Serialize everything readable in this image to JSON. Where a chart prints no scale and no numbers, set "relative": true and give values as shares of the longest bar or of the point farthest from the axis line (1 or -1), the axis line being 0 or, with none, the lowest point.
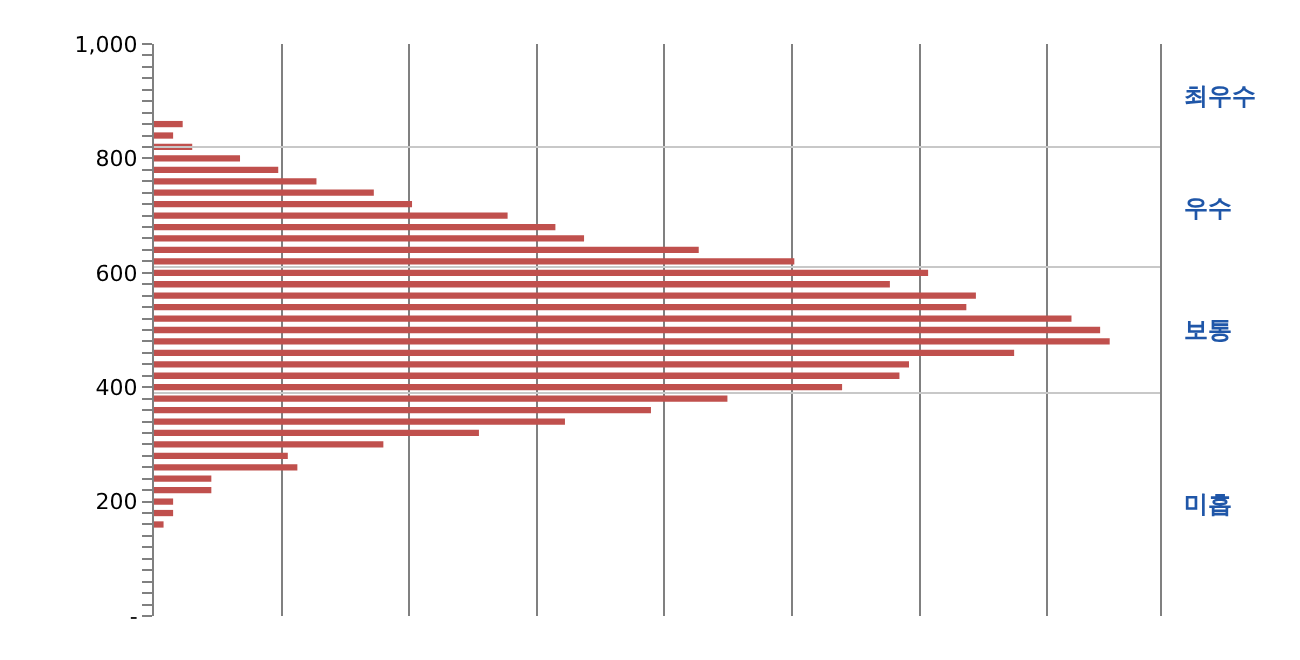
{
  "chart_data": {
    "type": "bar",
    "orientation": "horizontal",
    "relative": true,
    "x": [
      860,
      840,
      820,
      800,
      780,
      760,
      740,
      720,
      700,
      680,
      660,
      640,
      620,
      600,
      580,
      560,
      540,
      520,
      500,
      480,
      460,
      440,
      420,
      400,
      380,
      360,
      340,
      320,
      300,
      280,
      260,
      240,
      220,
      200,
      180,
      160
    ],
    "values": [
      0.03,
      0.02,
      0.04,
      0.09,
      0.13,
      0.17,
      0.23,
      0.27,
      0.37,
      0.42,
      0.45,
      0.57,
      0.67,
      0.81,
      0.77,
      0.86,
      0.85,
      0.96,
      0.99,
      1.0,
      0.9,
      0.79,
      0.78,
      0.72,
      0.6,
      0.52,
      0.43,
      0.34,
      0.24,
      0.14,
      0.15,
      0.06,
      0.06,
      0.02,
      0.02,
      0.01
    ],
    "color": "#c0504d",
    "ylim": [
      0,
      1000
    ],
    "yticks": [
      {
        "value": 0,
        "label": "-"
      },
      200,
      400,
      600,
      800,
      {
        "value": 1000,
        "label": "1,000"
      }
    ],
    "ref_lines": [
      {
        "axis": "y",
        "value": 820,
        "color": "#c8c8c8"
      },
      {
        "axis": "y",
        "value": 610,
        "color": "#c8c8c8"
      },
      {
        "axis": "y",
        "value": 390,
        "color": "#c8c8c8"
      }
    ],
    "annotations": [
      "최우수",
      "우수",
      "보통",
      "미흡"
    ],
    "grid": "x",
    "tick_labels": "y"
  }
}
